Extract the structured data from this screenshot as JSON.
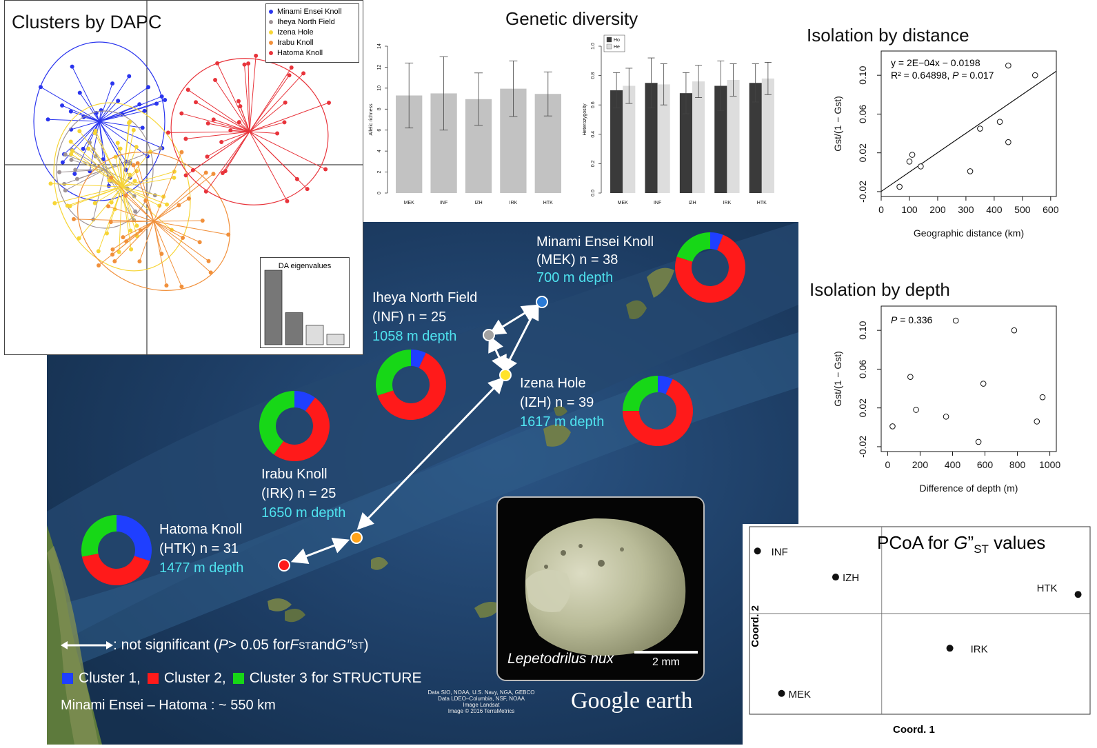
{
  "colors": {
    "cluster1": "#1f3fff",
    "cluster2": "#ff1a1a",
    "cluster3": "#17d717",
    "dapc_minami": "#2a35ee",
    "dapc_iheya": "#9e9396",
    "dapc_izena": "#f7d536",
    "dapc_irabu": "#f1903b",
    "dapc_hatoma": "#e8343b",
    "depth_text": "#4fe3ef",
    "ocean": "#1c3a5e"
  },
  "dapc": {
    "title": "Clusters by DAPC",
    "legend": [
      "Minami Ensei Knoll",
      "Iheya North Field",
      "Izena Hole",
      "Irabu Knoll",
      "Hatoma Knoll"
    ],
    "eigen_title": "DA eigenvalues",
    "eigenvalues": [
      1.0,
      0.43,
      0.26,
      0.14
    ]
  },
  "genetic_diversity": {
    "title": "Genetic diversity"
  },
  "ibd_distance": {
    "title": "Isolation by distance",
    "equation": "y = 2E−04x − 0.0198",
    "r2_label": "R² = 0.64898,",
    "p_label": "P",
    "p_value": " = 0.017",
    "slope": 0.0002,
    "intercept": -0.0198
  },
  "ibd_depth": {
    "title": "Isolation by depth",
    "p_label": "P",
    "p_value": " = 0.336"
  },
  "pcoa": {
    "title_prefix": "PCoA for ",
    "title_g": "G",
    "title_sup": "”",
    "title_sub": "ST",
    "title_suffix": " values",
    "xlabel": "Coord. 1",
    "ylabel": "Coord. 2"
  },
  "map": {
    "sites": [
      {
        "name": "Minami Ensei Knoll",
        "code_n": "(MEK) n = 38",
        "depth": "700 m depth"
      },
      {
        "name": "Iheya North Field",
        "code_n": "(INF) n = 25",
        "depth": "1058 m depth"
      },
      {
        "name": "Izena Hole",
        "code_n": "(IZH) n = 39",
        "depth": "1617 m depth"
      },
      {
        "name": "Irabu Knoll",
        "code_n": "(IRK) n = 25",
        "depth": "1650 m depth"
      },
      {
        "name": "Hatoma Knoll",
        "code_n": "(HTK) n = 31",
        "depth": "1477 m depth"
      }
    ],
    "arrow_note_prefix": ": not significant (",
    "arrow_note_p": "P",
    "arrow_note_mid": " > 0.05 for ",
    "arrow_note_f": "F",
    "arrow_note_fsub": "ST",
    "arrow_note_and": " and ",
    "arrow_note_g": "G″",
    "arrow_note_gsub": "ST",
    "arrow_note_end": ")",
    "legend_c1": "Cluster 1,",
    "legend_c2": "Cluster 2,",
    "legend_c3": "Cluster 3 for STRUCTURE",
    "distance_note": "Minami Ensei – Hatoma : ~ 550 km",
    "species": "Lepetodrilus nux",
    "scale_label": "2 mm",
    "credits": [
      "Data SIO, NOAA, U.S. Navy, NGA, GEBCO",
      "Data LDEO–Columbia, NSF, NOAA",
      "Image Landsat",
      "Image © 2016 TerraMetrics"
    ],
    "brand": "Google earth"
  },
  "chart_data": [
    {
      "type": "bar",
      "id": "allelic-richness",
      "ylabel": "Allelic richness",
      "categories": [
        "MEK",
        "INF",
        "IZH",
        "IRK",
        "HTK"
      ],
      "values": [
        9.3,
        9.5,
        8.95,
        9.95,
        9.45
      ],
      "errors": [
        3.1,
        3.5,
        2.5,
        2.65,
        2.1
      ],
      "ylim": [
        0,
        14
      ],
      "yticks": [
        0,
        2,
        4,
        6,
        8,
        10,
        12,
        14
      ]
    },
    {
      "type": "bar",
      "id": "heterozygosity",
      "ylabel": "Heterozygosity",
      "categories": [
        "MEK",
        "INF",
        "IZH",
        "IRK",
        "HTK"
      ],
      "series": [
        {
          "name": "Ho",
          "values": [
            0.7,
            0.75,
            0.68,
            0.73,
            0.75
          ],
          "errors": [
            0.12,
            0.17,
            0.14,
            0.17,
            0.13
          ],
          "color": "#3a3a3a"
        },
        {
          "name": "He",
          "values": [
            0.73,
            0.74,
            0.76,
            0.77,
            0.78
          ],
          "errors": [
            0.12,
            0.14,
            0.11,
            0.11,
            0.11
          ],
          "color": "#dddddd"
        }
      ],
      "ylim": [
        0,
        1.0
      ],
      "yticks": [
        "0.0",
        "0.2",
        "0.4",
        "0.6",
        "0.8",
        "1.0"
      ]
    },
    {
      "type": "scatter",
      "id": "isolation-by-distance",
      "title": "Isolation by distance",
      "xlabel": "Geographic distance (km)",
      "ylabel": "Gst/(1 − Gst)",
      "x": [
        65,
        100,
        110,
        140,
        315,
        350,
        420,
        450,
        450,
        545
      ],
      "y": [
        -0.015,
        0.011,
        0.018,
        0.006,
        0.001,
        0.045,
        0.052,
        0.031,
        0.11,
        0.1
      ],
      "xlim": [
        0,
        620
      ],
      "ylim": [
        -0.025,
        0.125
      ],
      "xticks": [
        0,
        100,
        200,
        300,
        400,
        500,
        600
      ],
      "yticks": [
        "-0.02",
        "0.02",
        "0.06",
        "0.10"
      ]
    },
    {
      "type": "scatter",
      "id": "isolation-by-depth",
      "title": "Isolation by depth",
      "xlabel": "Difference of depth (m)",
      "ylabel": "Gst/(1 − Gst)",
      "x": [
        30,
        140,
        175,
        360,
        420,
        560,
        590,
        780,
        920,
        955
      ],
      "y": [
        0.001,
        0.052,
        0.018,
        0.011,
        0.11,
        -0.015,
        0.045,
        0.1,
        0.006,
        0.031
      ],
      "xlim": [
        -40,
        1040
      ],
      "ylim": [
        -0.025,
        0.125
      ],
      "xticks": [
        0,
        200,
        400,
        600,
        800,
        1000
      ],
      "yticks": [
        "-0.02",
        "0.02",
        "0.06",
        "0.10"
      ]
    },
    {
      "type": "scatter",
      "id": "pcoa",
      "title": "PCoA for G”ST values",
      "xlabel": "Coord. 1",
      "ylabel": "Coord. 2",
      "points": [
        {
          "label": "INF",
          "x": -0.62,
          "y": 0.72
        },
        {
          "label": "IZH",
          "x": -0.23,
          "y": 0.42
        },
        {
          "label": "HTK",
          "x": 0.98,
          "y": 0.22
        },
        {
          "label": "IRK",
          "x": 0.34,
          "y": -0.4
        },
        {
          "label": "MEK",
          "x": -0.5,
          "y": -0.92
        }
      ],
      "xlim": [
        -0.66,
        1.04
      ],
      "ylim": [
        -1.16,
        1.0
      ]
    }
  ]
}
